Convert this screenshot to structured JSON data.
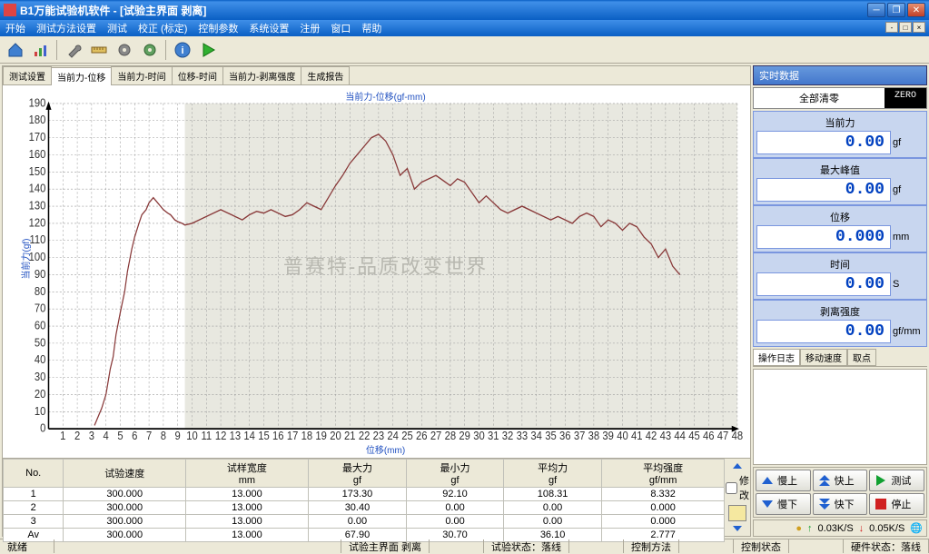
{
  "title": "B1万能试验机软件 - [试验主界面 剥离]",
  "menu": [
    "开始",
    "测试方法设置",
    "测试",
    "校正 (标定)",
    "控制参数",
    "系统设置",
    "注册",
    "窗口",
    "帮助"
  ],
  "tabs": [
    "测试设置",
    "当前力-位移",
    "当前力-时间",
    "位移-时间",
    "当前力-剥离强度",
    "生成报告"
  ],
  "activeTab": 1,
  "chart": {
    "title": "当前力-位移(gf-mm)",
    "xlabel": "位移(mm)",
    "ylabel": "当前力(gf)",
    "xmin": 0,
    "xmax": 48,
    "xstep": 1,
    "ymin": 0,
    "ymax": 190,
    "ystep": 10,
    "shadedFrom": 9.5,
    "lineColor": "#883838",
    "gridColor": "#999999",
    "bgColor": "#ffffff",
    "shadedColor": "#e8e8e0",
    "points": [
      [
        3.2,
        2
      ],
      [
        3.5,
        8
      ],
      [
        3.7,
        12
      ],
      [
        4,
        20
      ],
      [
        4.3,
        35
      ],
      [
        4.5,
        42
      ],
      [
        4.7,
        55
      ],
      [
        5,
        68
      ],
      [
        5.3,
        80
      ],
      [
        5.5,
        92
      ],
      [
        5.8,
        105
      ],
      [
        6,
        112
      ],
      [
        6.3,
        120
      ],
      [
        6.5,
        125
      ],
      [
        6.8,
        128
      ],
      [
        7,
        132
      ],
      [
        7.3,
        135
      ],
      [
        7.5,
        133
      ],
      [
        7.8,
        130
      ],
      [
        8,
        128
      ],
      [
        8.3,
        126
      ],
      [
        8.5,
        125
      ],
      [
        8.8,
        122
      ],
      [
        9,
        121
      ],
      [
        9.3,
        120
      ],
      [
        9.5,
        119
      ],
      [
        10,
        120
      ],
      [
        10.5,
        122
      ],
      [
        11,
        124
      ],
      [
        11.5,
        126
      ],
      [
        12,
        128
      ],
      [
        12.5,
        126
      ],
      [
        13,
        124
      ],
      [
        13.5,
        122
      ],
      [
        14,
        125
      ],
      [
        14.5,
        127
      ],
      [
        15,
        126
      ],
      [
        15.5,
        128
      ],
      [
        16,
        126
      ],
      [
        16.5,
        124
      ],
      [
        17,
        125
      ],
      [
        17.5,
        128
      ],
      [
        18,
        132
      ],
      [
        18.5,
        130
      ],
      [
        19,
        128
      ],
      [
        19.5,
        135
      ],
      [
        20,
        142
      ],
      [
        20.5,
        148
      ],
      [
        21,
        155
      ],
      [
        21.5,
        160
      ],
      [
        22,
        165
      ],
      [
        22.5,
        170
      ],
      [
        23,
        172
      ],
      [
        23.5,
        168
      ],
      [
        24,
        160
      ],
      [
        24.5,
        148
      ],
      [
        25,
        152
      ],
      [
        25.5,
        140
      ],
      [
        26,
        144
      ],
      [
        26.5,
        146
      ],
      [
        27,
        148
      ],
      [
        27.5,
        145
      ],
      [
        28,
        142
      ],
      [
        28.5,
        146
      ],
      [
        29,
        144
      ],
      [
        29.5,
        138
      ],
      [
        30,
        132
      ],
      [
        30.5,
        136
      ],
      [
        31,
        132
      ],
      [
        31.5,
        128
      ],
      [
        32,
        126
      ],
      [
        32.5,
        128
      ],
      [
        33,
        130
      ],
      [
        33.5,
        128
      ],
      [
        34,
        126
      ],
      [
        34.5,
        124
      ],
      [
        35,
        122
      ],
      [
        35.5,
        124
      ],
      [
        36,
        122
      ],
      [
        36.5,
        120
      ],
      [
        37,
        124
      ],
      [
        37.5,
        126
      ],
      [
        38,
        124
      ],
      [
        38.5,
        118
      ],
      [
        39,
        122
      ],
      [
        39.5,
        120
      ],
      [
        40,
        116
      ],
      [
        40.5,
        120
      ],
      [
        41,
        118
      ],
      [
        41.5,
        112
      ],
      [
        42,
        108
      ],
      [
        42.5,
        100
      ],
      [
        43,
        105
      ],
      [
        43.5,
        95
      ],
      [
        44,
        90
      ]
    ]
  },
  "watermark": "普赛特-品质改变世界",
  "table": {
    "headers": [
      "No.",
      "试验速度",
      "试样宽度\nmm",
      "最大力\ngf",
      "最小力\ngf",
      "平均力\ngf",
      "平均强度\ngf/mm"
    ],
    "rows": [
      [
        "1",
        "300.000",
        "13.000",
        "173.30",
        "92.10",
        "108.31",
        "8.332"
      ],
      [
        "2",
        "300.000",
        "13.000",
        "30.40",
        "0.00",
        "0.00",
        "0.000"
      ],
      [
        "3",
        "300.000",
        "13.000",
        "0.00",
        "0.00",
        "0.00",
        "0.000"
      ],
      [
        "Av",
        "300.000",
        "13.000",
        "67.90",
        "30.70",
        "36.10",
        "2.777"
      ]
    ],
    "checkbox": "修改"
  },
  "realtime": {
    "header": "实时数据",
    "zeroLabel": "全部清零",
    "zeroBtn": "ZERO",
    "panels": [
      {
        "label": "当前力",
        "value": "0.00",
        "unit": "gf"
      },
      {
        "label": "最大峰值",
        "value": "0.00",
        "unit": "gf"
      },
      {
        "label": "位移",
        "value": "0.000",
        "unit": "mm"
      },
      {
        "label": "时间",
        "value": "0.00",
        "unit": "S"
      },
      {
        "label": "剥离强度",
        "value": "0.00",
        "unit": "gf/mm"
      }
    ]
  },
  "logTabs": [
    "操作日志",
    "移动速度",
    "取点"
  ],
  "controls": [
    {
      "label": "慢上",
      "icon": "up1",
      "color": "#2060d0"
    },
    {
      "label": "快上",
      "icon": "up2",
      "color": "#2060d0"
    },
    {
      "label": "测试",
      "icon": "play",
      "color": "#10a030"
    },
    {
      "label": "慢下",
      "icon": "dn1",
      "color": "#2060d0"
    },
    {
      "label": "快下",
      "icon": "dn2",
      "color": "#2060d0"
    },
    {
      "label": "停止",
      "icon": "stop",
      "color": "#d02020"
    }
  ],
  "speed": {
    "up": "0.03K/S",
    "dn": "0.05K/S"
  },
  "status": {
    "s1": "就绪",
    "s2": "试验主界面 剥离",
    "s3": "试验状态：落线",
    "s4": "控制方法",
    "s5": "控制状态",
    "s6": "硬件状态：落线"
  },
  "toolIcons": [
    "home",
    "chart",
    "wrench",
    "ruler",
    "gear",
    "settings",
    "info",
    "play"
  ]
}
